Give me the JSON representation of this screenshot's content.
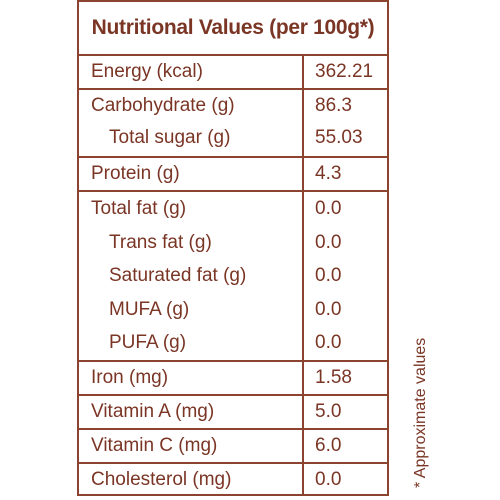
{
  "title": "Nutritional Values (per 100g*)",
  "rows": [
    {
      "name": "Energy (kcal)",
      "value": "362.21"
    },
    {
      "name": "Carbohydrate (g)",
      "value": "86.3"
    },
    {
      "name": "Total sugar (g)",
      "value": "55.03"
    },
    {
      "name": "Protein (g)",
      "value": "4.3"
    },
    {
      "name": "Total fat (g)",
      "value": "0.0"
    },
    {
      "name": "Trans fat (g)",
      "value": "0.0"
    },
    {
      "name": "Saturated fat (g)",
      "value": "0.0"
    },
    {
      "name": "MUFA (g)",
      "value": "0.0"
    },
    {
      "name": "PUFA (g)",
      "value": "0.0"
    },
    {
      "name": "Iron (mg)",
      "value": "1.58"
    },
    {
      "name": "Vitamin A (mg)",
      "value": "5.0"
    },
    {
      "name": "Vitamin C (mg)",
      "value": "6.0"
    },
    {
      "name": "Cholesterol (mg)",
      "value": "0.0"
    }
  ],
  "footnote": "* Approximate values",
  "colors": {
    "text": "#7a3525",
    "border": "#8c4430",
    "background": "#ffffff"
  }
}
